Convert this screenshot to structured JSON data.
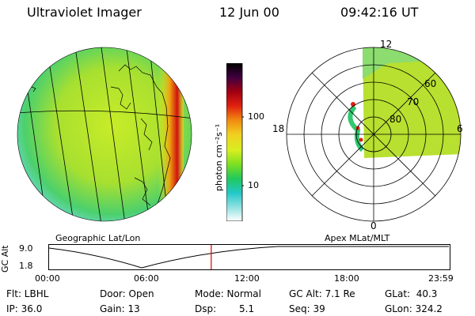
{
  "header": {
    "title": "Ultraviolet Imager",
    "date": "12 Jun 00",
    "time": "09:42:16 UT"
  },
  "colorbar": {
    "unit_label": "photon cm⁻²s⁻¹",
    "ticks": [
      "100",
      "10"
    ],
    "stops": [
      "#ffffff",
      "#8fe0e0",
      "#22c8c8",
      "#22c85a",
      "#7de020",
      "#d8ee20",
      "#f0d020",
      "#f08a10",
      "#e02010",
      "#a00010",
      "#400040",
      "#000000"
    ]
  },
  "panels": {
    "left_label": "Geographic Lat/Lon",
    "right_label": "Apex MLat/MLT"
  },
  "polar": {
    "mlt_labels": [
      "12",
      "18",
      "6",
      "0"
    ],
    "lat_labels": [
      "60",
      "70",
      "80"
    ]
  },
  "altitude_plot": {
    "ylabel": "GC Alt",
    "yticks": [
      "9.0",
      "1.8"
    ],
    "xticks": [
      "00:00",
      "06:00",
      "12:00",
      "18:00",
      "23:59"
    ],
    "marker_time_fraction": 0.404,
    "marker_color": "#e00000"
  },
  "info": {
    "flt": "Flt: LBHL",
    "ip": "IP: 36.0",
    "door": "Door: Open",
    "gain": "Gain: 13",
    "mode": "Mode: Normal",
    "dsp_label": "Dsp:",
    "dsp_value": "5.1",
    "gcalt": "GC Alt: 7.1 Re",
    "seq": "Seq: 39",
    "glat": "GLat:  40.3",
    "glon": "GLon: 324.2"
  }
}
